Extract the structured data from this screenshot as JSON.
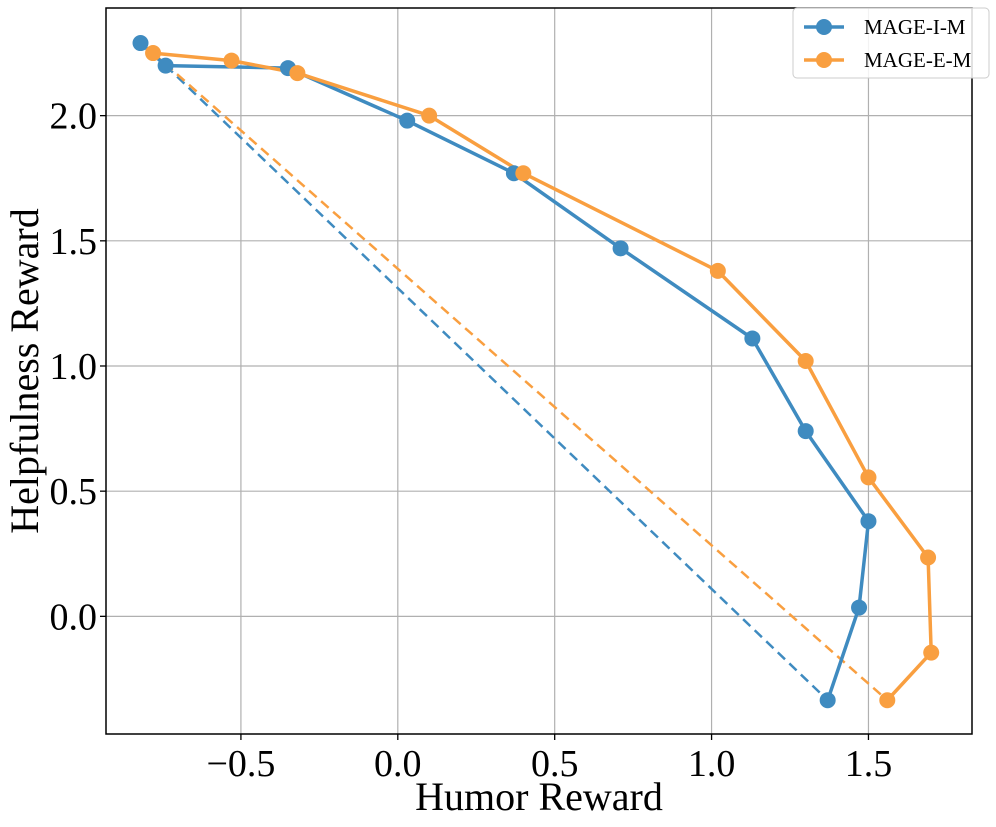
{
  "chart_data": {
    "type": "line",
    "title": "",
    "xlabel": "Humor Reward",
    "ylabel": "Helpfulness Reward",
    "xlim": [
      -0.93,
      1.83
    ],
    "ylim": [
      -0.47,
      2.43
    ],
    "grid": true,
    "legend_position": "top-right",
    "x_ticks": [
      -0.5,
      0.0,
      0.5,
      1.0,
      1.5
    ],
    "x_tick_labels": [
      "−0.5",
      "0.0",
      "0.5",
      "1.0",
      "1.5"
    ],
    "y_ticks": [
      0.0,
      0.5,
      1.0,
      1.5,
      2.0
    ],
    "y_tick_labels": [
      "0.0",
      "0.5",
      "1.0",
      "1.5",
      "2.0"
    ],
    "series": [
      {
        "name": "MAGE-I-M",
        "color": "#3f8bc0",
        "points": [
          [
            -0.82,
            2.29
          ],
          [
            -0.74,
            2.2
          ],
          [
            -0.35,
            2.19
          ],
          [
            0.03,
            1.98
          ],
          [
            0.37,
            1.77
          ],
          [
            0.71,
            1.47
          ],
          [
            1.13,
            1.11
          ],
          [
            1.3,
            0.74
          ],
          [
            1.5,
            0.38
          ],
          [
            1.47,
            0.035
          ],
          [
            1.37,
            -0.335
          ]
        ],
        "dashed_line": [
          [
            -0.74,
            2.2
          ],
          [
            1.37,
            -0.335
          ]
        ]
      },
      {
        "name": "MAGE-E-M",
        "color": "#f99f40",
        "points": [
          [
            -0.78,
            2.25
          ],
          [
            -0.53,
            2.22
          ],
          [
            -0.32,
            2.17
          ],
          [
            0.1,
            2.0
          ],
          [
            0.4,
            1.77
          ],
          [
            1.02,
            1.38
          ],
          [
            1.3,
            1.02
          ],
          [
            1.5,
            0.555
          ],
          [
            1.69,
            0.235
          ],
          [
            1.7,
            -0.145
          ],
          [
            1.56,
            -0.335
          ]
        ],
        "dashed_line": [
          [
            -0.78,
            2.25
          ],
          [
            1.56,
            -0.335
          ]
        ]
      }
    ]
  }
}
